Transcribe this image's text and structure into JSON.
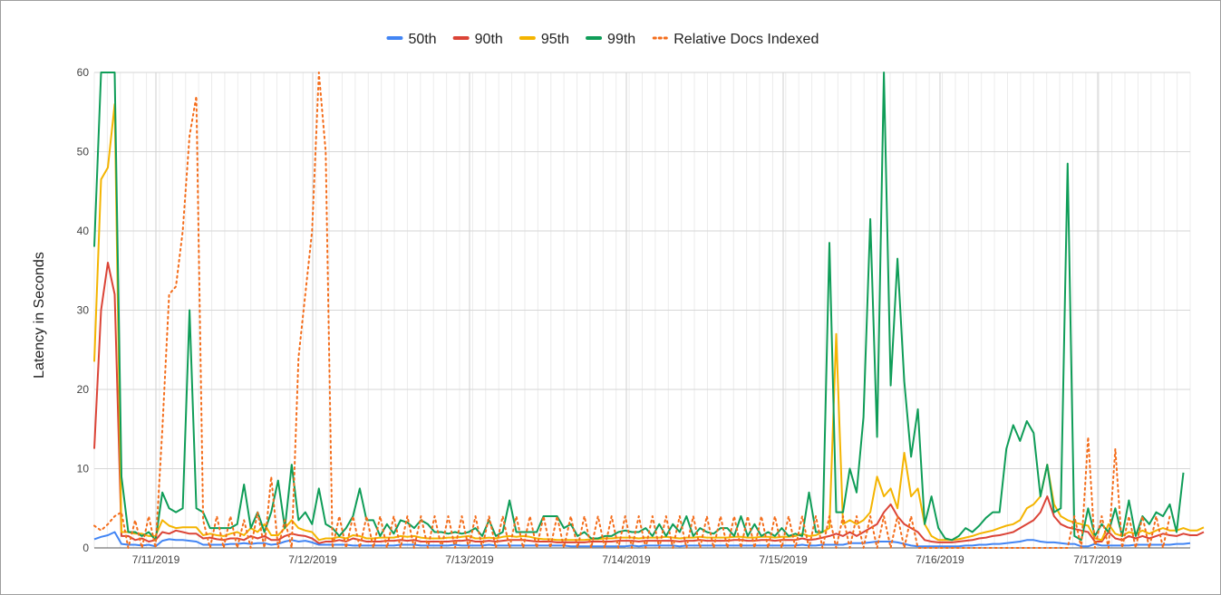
{
  "chart_data": {
    "type": "line",
    "title": "",
    "xlabel": "",
    "ylabel": "Latency in Seconds",
    "ylim": [
      0,
      60
    ],
    "yticks": [
      0,
      10,
      20,
      30,
      40,
      50,
      60
    ],
    "x_tick_labels": [
      "7/11/2019",
      "7/12/2019",
      "7/13/2019",
      "7/14/2019",
      "7/15/2019",
      "7/16/2019",
      "7/17/2019"
    ],
    "grid": true,
    "legend_position": "top",
    "series": [
      {
        "name": "50th",
        "color": "#4285f4",
        "style": "solid",
        "values": [
          1.1,
          1.4,
          1.6,
          2.0,
          0.5,
          0.4,
          0.4,
          0.3,
          0.4,
          0.2,
          0.9,
          1.1,
          1.0,
          1.0,
          0.9,
          0.8,
          0.4,
          0.4,
          0.4,
          0.4,
          0.5,
          0.5,
          0.6,
          0.5,
          0.6,
          0.6,
          0.4,
          0.5,
          0.8,
          1.0,
          0.8,
          0.9,
          0.7,
          0.4,
          0.4,
          0.4,
          0.4,
          0.4,
          0.3,
          0.3,
          0.3,
          0.3,
          0.3,
          0.3,
          0.3,
          0.4,
          0.4,
          0.4,
          0.3,
          0.3,
          0.3,
          0.3,
          0.3,
          0.4,
          0.3,
          0.3,
          0.3,
          0.3,
          0.4,
          0.3,
          0.3,
          0.3,
          0.3,
          0.3,
          0.3,
          0.3,
          0.3,
          0.3,
          0.3,
          0.3,
          0.2,
          0.2,
          0.2,
          0.2,
          0.2,
          0.2,
          0.2,
          0.2,
          0.2,
          0.3,
          0.2,
          0.3,
          0.3,
          0.3,
          0.3,
          0.3,
          0.2,
          0.3,
          0.3,
          0.3,
          0.3,
          0.3,
          0.3,
          0.3,
          0.3,
          0.3,
          0.3,
          0.3,
          0.3,
          0.3,
          0.3,
          0.3,
          0.3,
          0.3,
          0.4,
          0.3,
          0.3,
          0.4,
          0.4,
          0.4,
          0.4,
          0.6,
          0.6,
          0.6,
          0.7,
          0.8,
          0.8,
          0.8,
          0.7,
          0.5,
          0.3,
          0.2,
          0.2,
          0.2,
          0.2,
          0.2,
          0.2,
          0.2,
          0.3,
          0.3,
          0.4,
          0.4,
          0.5,
          0.5,
          0.6,
          0.7,
          0.8,
          1.0,
          1.0,
          0.8,
          0.7,
          0.7,
          0.6,
          0.5,
          0.5,
          0.2,
          0.2,
          0.5,
          0.3,
          0.3,
          0.3,
          0.3,
          0.3,
          0.4,
          0.4,
          0.4,
          0.4,
          0.4,
          0.4,
          0.5,
          0.5,
          0.6
        ]
      },
      {
        "name": "90th",
        "color": "#db4437",
        "style": "solid",
        "values": [
          12.5,
          30,
          36,
          32,
          1.5,
          1.5,
          1.0,
          1.2,
          0.8,
          1.0,
          2.0,
          1.8,
          2.2,
          2.0,
          1.8,
          1.8,
          1.2,
          1.3,
          1.1,
          1.0,
          1.2,
          1.2,
          1.0,
          1.5,
          1.2,
          1.5,
          1.0,
          1.0,
          1.5,
          1.8,
          1.6,
          1.5,
          1.2,
          0.6,
          0.8,
          0.8,
          1.0,
          0.8,
          1.2,
          1.0,
          0.8,
          0.8,
          0.8,
          0.9,
          0.9,
          1.0,
          0.9,
          1.0,
          0.8,
          0.8,
          0.8,
          0.8,
          0.8,
          0.9,
          0.9,
          1.0,
          0.8,
          0.8,
          0.9,
          0.8,
          0.9,
          1.0,
          1.0,
          1.0,
          0.9,
          0.8,
          0.8,
          0.8,
          0.7,
          0.7,
          0.7,
          0.7,
          0.7,
          0.8,
          0.8,
          0.8,
          0.8,
          0.9,
          0.9,
          0.9,
          0.8,
          0.9,
          0.9,
          0.9,
          0.9,
          0.9,
          0.8,
          0.9,
          0.9,
          1.0,
          0.9,
          0.9,
          0.9,
          0.9,
          1.0,
          1.0,
          0.9,
          0.9,
          1.0,
          1.0,
          0.9,
          1.0,
          1.0,
          1.0,
          1.2,
          1.0,
          1.1,
          1.3,
          1.5,
          1.8,
          1.5,
          2.0,
          1.5,
          2.0,
          2.5,
          3.0,
          4.5,
          5.5,
          4.0,
          3.0,
          2.5,
          2.0,
          1.0,
          0.8,
          0.7,
          0.7,
          0.7,
          0.8,
          0.9,
          1.0,
          1.2,
          1.3,
          1.5,
          1.6,
          1.8,
          2.0,
          2.5,
          3.0,
          3.5,
          4.5,
          6.5,
          4.0,
          3.0,
          2.6,
          2.4,
          2.2,
          2.0,
          0.8,
          0.8,
          2.0,
          1.2,
          1.0,
          1.5,
          1.2,
          1.5,
          1.2,
          1.5,
          1.8,
          1.6,
          1.5,
          1.8,
          1.6,
          1.6,
          2.0
        ]
      },
      {
        "name": "95th",
        "color": "#f4b400",
        "style": "solid",
        "values": [
          23.5,
          46.5,
          48,
          56,
          2.0,
          2.0,
          1.8,
          1.8,
          1.5,
          1.5,
          3.5,
          2.8,
          2.5,
          2.6,
          2.6,
          2.6,
          1.6,
          1.8,
          1.6,
          1.5,
          1.8,
          2.0,
          1.6,
          2.5,
          2.0,
          3.0,
          1.6,
          1.6,
          2.5,
          3.5,
          2.5,
          2.2,
          2.0,
          1.0,
          1.2,
          1.2,
          1.4,
          1.2,
          1.6,
          1.5,
          1.2,
          1.2,
          1.3,
          1.3,
          1.3,
          1.5,
          1.4,
          1.5,
          1.3,
          1.2,
          1.2,
          1.2,
          1.3,
          1.3,
          1.4,
          1.5,
          1.2,
          1.2,
          1.3,
          1.2,
          1.4,
          1.5,
          1.4,
          1.5,
          1.4,
          1.2,
          1.1,
          1.1,
          1.0,
          1.0,
          1.0,
          1.0,
          1.0,
          1.1,
          1.1,
          1.2,
          1.2,
          1.3,
          1.3,
          1.3,
          1.2,
          1.3,
          1.3,
          1.3,
          1.4,
          1.3,
          1.2,
          1.3,
          1.3,
          1.4,
          1.3,
          1.3,
          1.3,
          1.3,
          1.4,
          1.4,
          1.3,
          1.3,
          1.4,
          1.4,
          1.3,
          1.4,
          1.4,
          1.5,
          1.8,
          1.5,
          1.6,
          2.0,
          2.5,
          27,
          3.0,
          3.5,
          3.0,
          3.5,
          4.5,
          9.0,
          6.5,
          7.5,
          5.0,
          12,
          6.5,
          7.5,
          3.0,
          1.5,
          1.0,
          1.0,
          1.0,
          1.1,
          1.3,
          1.5,
          1.8,
          2.0,
          2.2,
          2.5,
          2.8,
          3.0,
          3.5,
          5.0,
          5.5,
          6.5,
          10.5,
          5.5,
          4.0,
          3.5,
          3.2,
          3.0,
          2.8,
          1.2,
          1.0,
          3.0,
          1.8,
          1.5,
          2.0,
          1.8,
          2.2,
          1.8,
          2.2,
          2.5,
          2.2,
          2.2,
          2.5,
          2.2,
          2.2,
          2.6
        ]
      },
      {
        "name": "99th",
        "color": "#0f9d58",
        "style": "solid",
        "values": [
          38,
          60,
          60,
          60,
          9.0,
          2.0,
          2.0,
          1.5,
          2.0,
          1.0,
          7.0,
          5.0,
          4.5,
          5.0,
          30,
          5.0,
          4.5,
          2.5,
          2.5,
          2.5,
          2.5,
          3.0,
          8.0,
          2.5,
          4.5,
          2.0,
          4.5,
          8.5,
          2.5,
          10.5,
          3.5,
          4.5,
          3.0,
          7.5,
          3.0,
          2.5,
          1.5,
          2.5,
          4.0,
          7.5,
          3.5,
          3.5,
          1.5,
          3.0,
          1.8,
          3.5,
          3.2,
          2.5,
          3.5,
          3.0,
          2.0,
          2.0,
          1.8,
          2.0,
          1.8,
          2.0,
          2.5,
          1.5,
          3.5,
          1.5,
          2.0,
          6.0,
          2.0,
          2.0,
          2.0,
          2.0,
          4.0,
          4.0,
          4.0,
          2.5,
          3.0,
          1.5,
          2.0,
          1.2,
          1.2,
          1.5,
          1.5,
          2.0,
          2.2,
          2.0,
          2.0,
          2.5,
          1.5,
          3.0,
          1.5,
          3.0,
          2.0,
          4.0,
          1.5,
          2.5,
          2.0,
          1.8,
          2.5,
          2.5,
          1.5,
          4.0,
          1.5,
          3.0,
          1.5,
          2.0,
          1.5,
          2.5,
          1.5,
          1.8,
          1.5,
          7.0,
          2.0,
          2.0,
          38.5,
          4.5,
          4.5,
          10,
          7.0,
          16.5,
          41.5,
          14,
          60,
          20.5,
          36.5,
          21,
          11.5,
          17.5,
          3.0,
          6.5,
          2.5,
          1.2,
          1.0,
          1.5,
          2.5,
          2.0,
          2.8,
          3.8,
          4.5,
          4.5,
          12.5,
          15.5,
          13.5,
          16,
          14.5,
          6.5,
          10.5,
          4.5,
          5.0,
          48.5,
          1.5,
          1.0,
          5.0,
          1.5,
          3.0,
          2.0,
          5.0,
          1.5,
          6.0,
          1.5,
          4.0,
          3.0,
          4.5,
          4.0,
          5.5,
          2.0,
          9.5
        ]
      },
      {
        "name": "Relative Docs Indexed",
        "color": "#f46d1b",
        "style": "dotted",
        "values": [
          2.8,
          2.2,
          3.0,
          4.0,
          4.5,
          0,
          3.5,
          0,
          4.0,
          0,
          15,
          32,
          33,
          40,
          52,
          57,
          3.5,
          0,
          4.0,
          0,
          4.0,
          0,
          3.5,
          0,
          4.5,
          0,
          9.0,
          0,
          3.5,
          0,
          24,
          32,
          40,
          60,
          50,
          0,
          4.0,
          0,
          4.0,
          0,
          4.0,
          0,
          4.0,
          0,
          4.0,
          0,
          4.0,
          0,
          4.0,
          0,
          4.0,
          0,
          4.0,
          0,
          4.0,
          0,
          4.0,
          0,
          4.0,
          0,
          4.0,
          0,
          4.0,
          0,
          4.0,
          0,
          4.0,
          0,
          4.0,
          0,
          4.0,
          0,
          4.0,
          0,
          4.0,
          0,
          4.0,
          0,
          4.0,
          0,
          4.0,
          0,
          4.0,
          0,
          4.0,
          0,
          4.0,
          0,
          4.0,
          0,
          4.0,
          0,
          4.0,
          0,
          4.0,
          0,
          4.0,
          0,
          4.0,
          0,
          4.0,
          0,
          4.0,
          0,
          4.0,
          0,
          4.0,
          0,
          4.0,
          0,
          4.0,
          0,
          4.0,
          0,
          4.0,
          0,
          4.0,
          0,
          4.0,
          0,
          4.0,
          0,
          0,
          0,
          0,
          0,
          0,
          0,
          0,
          0,
          0,
          0,
          0,
          0,
          0,
          0,
          0,
          0,
          0,
          0,
          0,
          0,
          0,
          0,
          4.0,
          0,
          14,
          0,
          4.0,
          0,
          12.5,
          0,
          4.0,
          0,
          4.0,
          0,
          4.0,
          0,
          4.0
        ]
      }
    ]
  }
}
